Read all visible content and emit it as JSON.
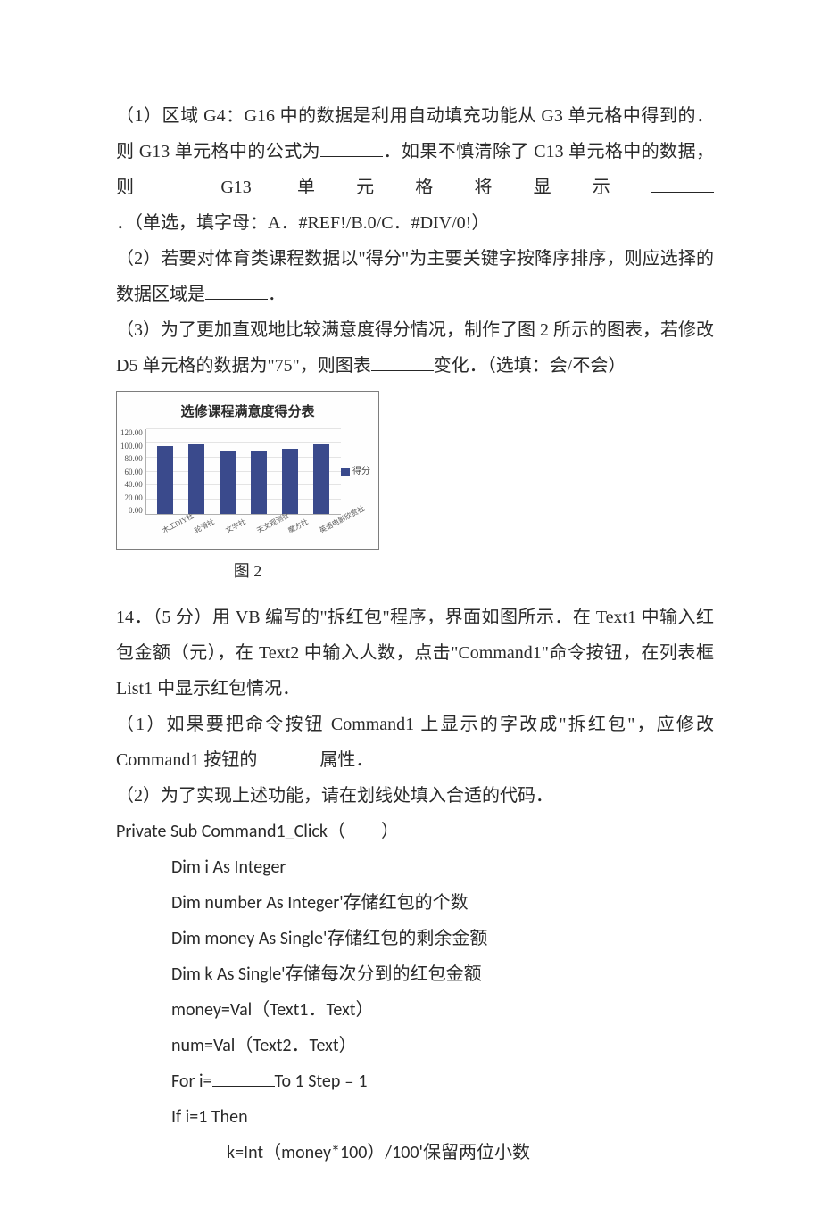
{
  "q13": {
    "p1_a": "（1）区域 G4：G16 中的数据是利用自动填充功能从 G3 单元格中得到的．则 G13 单元格中的公式为",
    "p1_b": "．如果不慎清除了 C13 单元格中的数据，则 G13 单元格将显示",
    "p1_c": "．（单选，填字母：A．#REF!/B.0/C．#DIV/0!）",
    "p2_a": "（2）若要对体育类课程数据以\"得分\"为主要关键字按降序排序，则应选择的数据区域是",
    "p2_b": "．",
    "p3_a": "（3）为了更加直观地比较满意度得分情况，制作了图 2 所示的图表，若修改 D5 单元格的数据为\"75\"，则图表",
    "p3_b": "变化．（选填：会/不会）"
  },
  "chart": {
    "title": "选修课程满意度得分表",
    "ylim": [
      0,
      120
    ],
    "ytick_step": 20,
    "yticks": [
      "120.00",
      "100.00",
      "80.00",
      "60.00",
      "40.00",
      "20.00",
      "0.00"
    ],
    "categories": [
      "木工DIY社",
      "轮滑社",
      "文学社",
      "天文观测社",
      "魔方社",
      "英语电影欣赏社"
    ],
    "values": [
      96,
      98,
      88,
      90,
      92,
      99
    ],
    "bar_color": "#3a4a8c",
    "grid_color": "#e4e4e4",
    "axis_color": "#b0b0b0",
    "background_color": "#fefefe",
    "legend_label": "得分",
    "title_fontsize": 15,
    "label_fontsize": 9,
    "caption": "图 2"
  },
  "q14": {
    "intro": "14．（5 分）用 VB 编写的\"拆红包\"程序，界面如图所示．在 Text1 中输入红包金额（元），在 Text2 中输入人数，点击\"Command1\"命令按钮，在列表框 List1 中显示红包情况．",
    "p1_a": "（1）如果要把命令按钮 Command1 上显示的字改成\"拆红包\"，应修改 Command1 按钮的",
    "p1_b": "属性．",
    "p2": "（2）为了实现上述功能，请在划线处填入合适的代码．",
    "code": {
      "l1": "Private Sub Command1_Click（　　）",
      "l2": "Dim i As Integer",
      "l3": "Dim number As Integer'存储红包的个数",
      "l4": "Dim money As Single'存储红包的剩余金额",
      "l5": "Dim k As Single'存储每次分到的红包金额",
      "l6": "money=Val（Text1．Text）",
      "l7": "num=Val（Text2．Text）",
      "l8a": "For i=",
      "l8b": "To 1 Step﹣1",
      "l9": "If i=1 Then",
      "l10": "k=Int（money*100）/100'保留两位小数"
    }
  }
}
